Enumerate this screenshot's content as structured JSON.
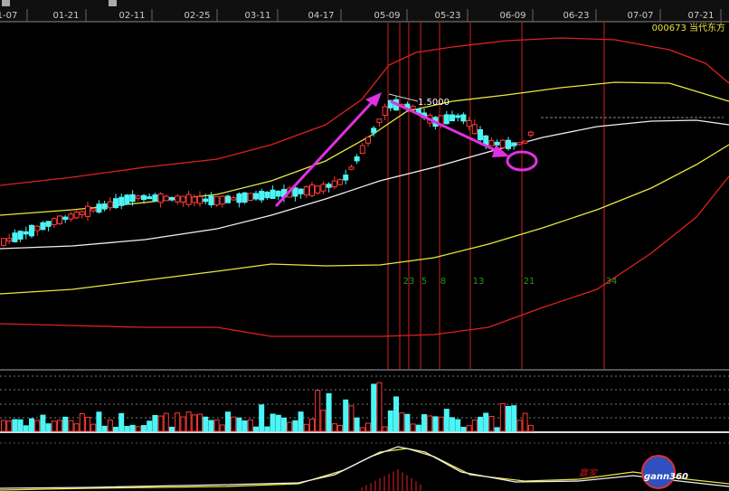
{
  "toolbar": {
    "dates": [
      "1-07",
      "01-21",
      "02-11",
      "02-25",
      "03-11",
      "04-17",
      "05-09",
      "05-23",
      "06-09",
      "06-23",
      "07-07",
      "07-21"
    ]
  },
  "stock": {
    "label": "000673 当代东方"
  },
  "annotations": {
    "price_label": "1.5000",
    "fib_numbers": [
      "23",
      "5",
      "8",
      "13",
      "21",
      "34"
    ]
  },
  "watermark": {
    "cn": "赢家",
    "brand": "gann360"
  }
}
